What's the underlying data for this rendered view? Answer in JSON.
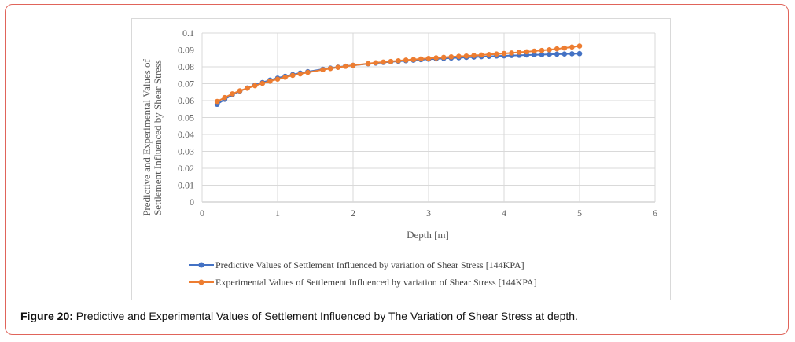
{
  "figure_caption": {
    "label": "Figure 20:",
    "text": "Predictive and Experimental Values of Settlement Influenced by The Variation of Shear Stress at depth."
  },
  "chart_data": {
    "type": "line",
    "xlabel": "Depth [m]",
    "ylabel_line1": "Predictive and Experimental  Values of",
    "ylabel_line2": "Settlement  Influenced by Shear Stress",
    "xlim": [
      0,
      6
    ],
    "ylim": [
      0,
      0.1
    ],
    "x_ticks": [
      "0",
      "1",
      "2",
      "3",
      "4",
      "5",
      "6"
    ],
    "y_ticks": [
      "0",
      "0.01",
      "0.02",
      "0.03",
      "0.04",
      "0.05",
      "0.06",
      "0.07",
      "0.08",
      "0.09",
      "0.1"
    ],
    "grid": true,
    "legend_position": "bottom",
    "x": [
      0.2,
      0.3,
      0.4,
      0.5,
      0.6,
      0.7,
      0.8,
      0.9,
      1.0,
      1.1,
      1.2,
      1.3,
      1.4,
      1.6,
      1.7,
      1.8,
      1.9,
      2.0,
      2.2,
      2.3,
      2.4,
      2.5,
      2.6,
      2.7,
      2.8,
      2.9,
      3.0,
      3.1,
      3.2,
      3.3,
      3.4,
      3.5,
      3.6,
      3.7,
      3.8,
      3.9,
      4.0,
      4.1,
      4.2,
      4.3,
      4.4,
      4.5,
      4.6,
      4.7,
      4.8,
      4.9,
      5.0
    ],
    "series": [
      {
        "name": "Predictive Values of Settlement Influenced by variation of Shear Stress [144KPA]",
        "color": "#4472c4",
        "values": [
          0.0578,
          0.0608,
          0.0634,
          0.0656,
          0.0675,
          0.0692,
          0.0707,
          0.0721,
          0.0733,
          0.0744,
          0.0754,
          0.0763,
          0.0771,
          0.0786,
          0.0792,
          0.0798,
          0.0804,
          0.0809,
          0.0818,
          0.0822,
          0.0826,
          0.083,
          0.0833,
          0.0836,
          0.0839,
          0.0842,
          0.0845,
          0.0847,
          0.085,
          0.0852,
          0.0854,
          0.0856,
          0.0858,
          0.086,
          0.0862,
          0.0864,
          0.0865,
          0.0867,
          0.0868,
          0.087,
          0.0871,
          0.0872,
          0.0874,
          0.0875,
          0.0876,
          0.0877,
          0.0878
        ]
      },
      {
        "name": "Experimental  Values of Settlement Influenced by variation of Shear Stress [144KPA]",
        "color": "#ed7d31",
        "values": [
          0.0595,
          0.0618,
          0.064,
          0.0658,
          0.0673,
          0.0688,
          0.0702,
          0.0715,
          0.0727,
          0.0738,
          0.0749,
          0.0758,
          0.0767,
          0.0783,
          0.079,
          0.0797,
          0.0803,
          0.0809,
          0.0819,
          0.0824,
          0.0828,
          0.0832,
          0.0836,
          0.084,
          0.0843,
          0.0847,
          0.085,
          0.0853,
          0.0856,
          0.0859,
          0.0862,
          0.0864,
          0.0867,
          0.087,
          0.0873,
          0.0876,
          0.0879,
          0.0882,
          0.0886,
          0.0889,
          0.0893,
          0.0897,
          0.0901,
          0.0906,
          0.0911,
          0.0917,
          0.0923
        ]
      }
    ]
  }
}
